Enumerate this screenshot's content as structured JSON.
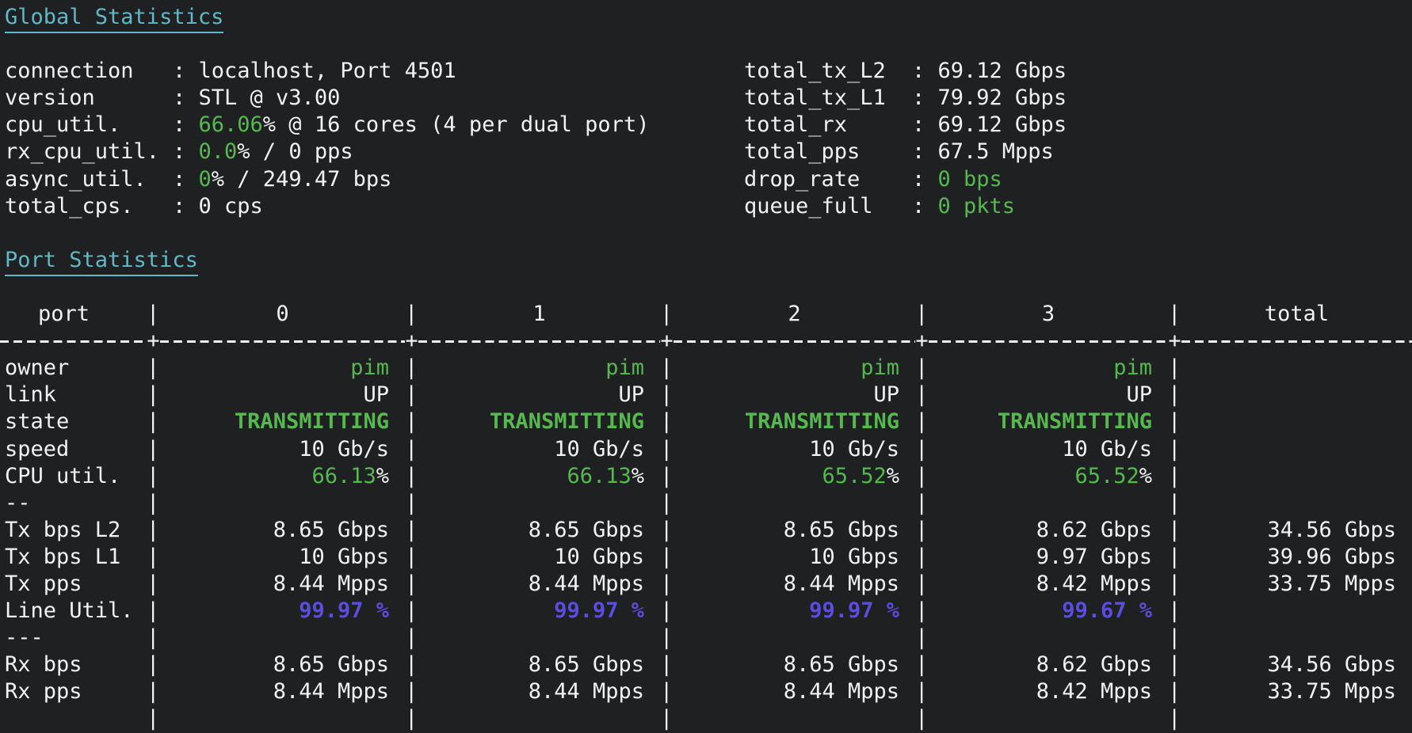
{
  "colors": {
    "bg": "#1f2022",
    "fg": "#f2f2f3",
    "green": "#55b94e",
    "purple": "#5a4de0",
    "cyan": "#61b8c6"
  },
  "headings": {
    "global": "Global Statistics",
    "port": "Port Statistics"
  },
  "global": {
    "left": [
      {
        "label": "connection",
        "sep": ": ",
        "hl": "",
        "rest": "localhost, Port 4501"
      },
      {
        "label": "version",
        "sep": ": ",
        "hl": "",
        "rest": "STL @ v3.00"
      },
      {
        "label": "cpu_util.",
        "sep": ": ",
        "hl": "66.06",
        "rest": "% @ 16 cores (4 per dual port)"
      },
      {
        "label": "rx_cpu_util.",
        "sep": ": ",
        "hl": "0.0",
        "rest": "% / 0 pps"
      },
      {
        "label": "async_util.",
        "sep": ": ",
        "hl": "0",
        "rest": "% / 249.47 bps"
      },
      {
        "label": "total_cps.",
        "sep": ": ",
        "hl": "",
        "rest": "0 cps"
      }
    ],
    "right": [
      {
        "label": "total_tx_L2",
        "sep": ": ",
        "hl": "",
        "rest": "69.12 Gbps"
      },
      {
        "label": "total_tx_L1",
        "sep": ": ",
        "hl": "",
        "rest": "79.92 Gbps"
      },
      {
        "label": "total_rx",
        "sep": ": ",
        "hl": "",
        "rest": "69.12 Gbps"
      },
      {
        "label": "total_pps",
        "sep": ": ",
        "hl": "",
        "rest": "67.5 Mpps"
      },
      {
        "label": "drop_rate",
        "sep": ": ",
        "hl": "0 bps",
        "rest": ""
      },
      {
        "label": "queue_full",
        "sep": ": ",
        "hl": "0 pkts",
        "rest": ""
      }
    ]
  },
  "table": {
    "header": {
      "label": "port",
      "c0": "0",
      "c1": "1",
      "c2": "2",
      "c3": "3",
      "c4": "total"
    },
    "rows": [
      {
        "label": "owner",
        "c0h": "pim",
        "c1h": "pim",
        "c2h": "pim",
        "c3h": "pim",
        "total": ""
      },
      {
        "label": "link",
        "c0t": "UP",
        "c1t": "UP",
        "c2t": "UP",
        "c3t": "UP",
        "total": ""
      },
      {
        "label": "state",
        "c0h": "TRANSMITTING",
        "c1h": "TRANSMITTING",
        "c2h": "TRANSMITTING",
        "c3h": "TRANSMITTING",
        "total": ""
      },
      {
        "label": "speed",
        "c0t": "10 Gb/s",
        "c1t": "10 Gb/s",
        "c2t": "10 Gb/s",
        "c3t": "10 Gb/s",
        "total": ""
      },
      {
        "label": "CPU util.",
        "c0h": "66.13",
        "c0t": "%",
        "c1h": "66.13",
        "c1t": "%",
        "c2h": "65.52",
        "c2t": "%",
        "c3h": "65.52",
        "c3t": "%",
        "total": ""
      },
      {
        "label": "--",
        "total": ""
      },
      {
        "label": "Tx bps L2",
        "c0t": "8.65 Gbps",
        "c1t": "8.65 Gbps",
        "c2t": "8.65 Gbps",
        "c3t": "8.62 Gbps",
        "total": "34.56 Gbps"
      },
      {
        "label": "Tx bps L1",
        "c0t": "10 Gbps",
        "c1t": "10 Gbps",
        "c2t": "10 Gbps",
        "c3t": "9.97 Gbps",
        "total": "39.96 Gbps"
      },
      {
        "label": "Tx pps",
        "c0t": "8.44 Mpps",
        "c1t": "8.44 Mpps",
        "c2t": "8.44 Mpps",
        "c3t": "8.42 Mpps",
        "total": "33.75 Mpps"
      },
      {
        "label": "Line Util.",
        "c0h": "99.97 %",
        "c1h": "99.97 %",
        "c2h": "99.97 %",
        "c3h": "99.67 %",
        "total": ""
      },
      {
        "label": "---",
        "total": ""
      },
      {
        "label": "Rx bps",
        "c0t": "8.65 Gbps",
        "c1t": "8.65 Gbps",
        "c2t": "8.65 Gbps",
        "c3t": "8.62 Gbps",
        "total": "34.56 Gbps"
      },
      {
        "label": "Rx pps",
        "c0t": "8.44 Mpps",
        "c1t": "8.44 Mpps",
        "c2t": "8.44 Mpps",
        "c3t": "8.42 Mpps",
        "total": "33.75 Mpps"
      }
    ]
  }
}
